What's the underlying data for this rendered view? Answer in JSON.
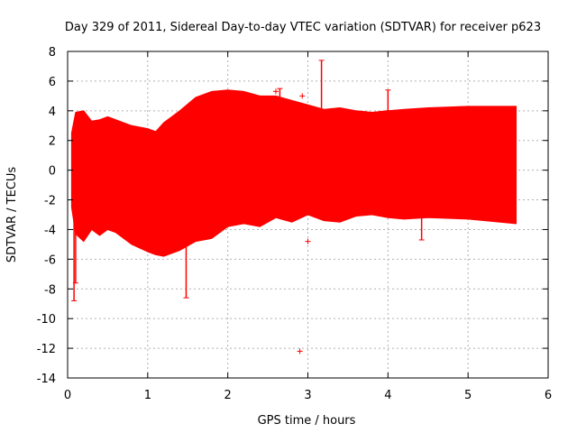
{
  "chart_data": {
    "type": "area",
    "title": "Day 329 of 2011, Sidereal Day-to-day VTEC variation (SDTVAR) for receiver p623",
    "xlabel": "GPS time / hours",
    "ylabel": "SDTVAR / TECUs",
    "xlim": [
      0,
      6
    ],
    "ylim": [
      -14,
      8
    ],
    "x_ticks": [
      0,
      1,
      2,
      3,
      4,
      5,
      6
    ],
    "y_ticks": [
      -14,
      -12,
      -10,
      -8,
      -6,
      -4,
      -2,
      0,
      2,
      4,
      6,
      8
    ],
    "grid": true,
    "series_color": "#ff0000",
    "band": {
      "name": "SDTVAR",
      "x": [
        0.05,
        0.1,
        0.2,
        0.3,
        0.4,
        0.5,
        0.6,
        0.8,
        1.0,
        1.1,
        1.2,
        1.4,
        1.6,
        1.8,
        2.0,
        2.2,
        2.4,
        2.6,
        2.8,
        3.0,
        3.2,
        3.4,
        3.6,
        3.8,
        4.0,
        4.2,
        4.5,
        5.0,
        5.6
      ],
      "upper": [
        2.5,
        3.9,
        4.0,
        3.3,
        3.4,
        3.6,
        3.4,
        3.0,
        2.8,
        2.6,
        3.2,
        4.0,
        4.9,
        5.3,
        5.4,
        5.3,
        5.0,
        5.0,
        4.7,
        4.4,
        4.1,
        4.2,
        4.0,
        3.9,
        4.0,
        4.1,
        4.2,
        4.3,
        4.3
      ],
      "lower": [
        -2.5,
        -4.3,
        -4.8,
        -4.0,
        -4.4,
        -4.0,
        -4.2,
        -5.0,
        -5.5,
        -5.7,
        -5.8,
        -5.4,
        -4.8,
        -4.6,
        -3.8,
        -3.6,
        -3.8,
        -3.2,
        -3.5,
        -3.0,
        -3.4,
        -3.5,
        -3.1,
        -3.0,
        -3.2,
        -3.3,
        -3.2,
        -3.3,
        -3.6
      ]
    },
    "spikes": [
      {
        "x": 0.08,
        "low": -8.8,
        "high": 2.5
      },
      {
        "x": 0.1,
        "low": -7.6,
        "high": 3.0
      },
      {
        "x": 1.48,
        "low": -8.6,
        "high": -5.0
      },
      {
        "x": 2.65,
        "low": -3.0,
        "high": 5.5
      },
      {
        "x": 3.17,
        "low": 4.0,
        "high": 7.4
      },
      {
        "x": 4.0,
        "low": 4.0,
        "high": 5.4
      },
      {
        "x": 4.42,
        "low": -4.7,
        "high": -3.0
      }
    ],
    "outliers": [
      {
        "x": 2.9,
        "y": -12.2
      },
      {
        "x": 3.0,
        "y": -4.8
      },
      {
        "x": 2.93,
        "y": 5.0
      },
      {
        "x": 2.6,
        "y": 5.3
      }
    ]
  }
}
